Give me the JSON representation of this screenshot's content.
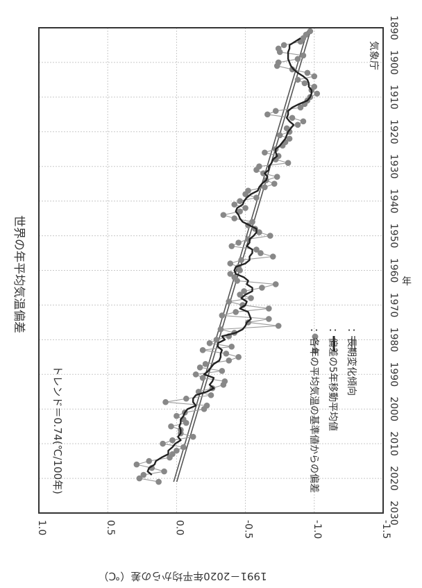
{
  "chart_data": {
    "type": "line",
    "title": "世界の年平均気温偏差",
    "xlabel": "年",
    "ylabel": "1991－2020年平均からの差（℃）",
    "source_label": "気象庁",
    "trend_label": "トレンド＝0.74(℃/100年)",
    "xlim": [
      1890,
      2030
    ],
    "ylim": [
      -1.5,
      1.0
    ],
    "x_ticks": [
      1890,
      1900,
      1910,
      1920,
      1930,
      1940,
      1950,
      1960,
      1970,
      1980,
      1990,
      2000,
      2010,
      2020,
      2030
    ],
    "y_ticks": [
      1.0,
      0.5,
      0.0,
      -0.5,
      -1.0,
      -1.5
    ],
    "y_tick_labels": [
      "1.0",
      "0.5",
      "0.0",
      "-0.5",
      "-1.0",
      "-1.5"
    ],
    "grid": true,
    "orientation": "rotated 90° clockwise (years run top to bottom of the page)",
    "legend_position": "right",
    "legend": [
      {
        "symbol": "dot-line",
        "label": "：各年の平均気温の基準値からの偏差"
      },
      {
        "symbol": "bold-line",
        "label": "：偏差の5年移動平均値"
      },
      {
        "symbol": "double-line",
        "label": "：長期変化傾向"
      }
    ],
    "colors": {
      "annual": "#888888",
      "moving_average": "#222222",
      "trend": "#555555"
    },
    "trend": {
      "x": [
        1891,
        2021
      ],
      "y": [
        -0.96,
        0.01
      ]
    },
    "series": [
      {
        "x": [
          1891,
          1892,
          1893,
          1894,
          1895,
          1896,
          1897,
          1898,
          1899,
          1900,
          1901,
          1902,
          1903,
          1904,
          1905,
          1906,
          1907,
          1908,
          1909,
          1910,
          1911,
          1912,
          1913,
          1914,
          1915,
          1916,
          1917,
          1918,
          1919,
          1920,
          1921,
          1922,
          1923,
          1924,
          1925,
          1926,
          1927,
          1928,
          1929,
          1930,
          1931,
          1932,
          1933,
          1934,
          1935,
          1936,
          1937,
          1938,
          1939,
          1940,
          1941,
          1942,
          1943,
          1944,
          1945,
          1946,
          1947,
          1948,
          1949,
          1950,
          1951,
          1952,
          1953,
          1954,
          1955,
          1956,
          1957,
          1958,
          1959,
          1960,
          1961,
          1962,
          1963,
          1964,
          1965,
          1966,
          1967,
          1968,
          1969,
          1970,
          1971,
          1972,
          1973,
          1974,
          1975,
          1976,
          1977,
          1978,
          1979,
          1980,
          1981,
          1982,
          1983,
          1984,
          1985,
          1986,
          1987,
          1988,
          1989,
          1990,
          1991,
          1992,
          1993,
          1994,
          1995,
          1996,
          1997,
          1998,
          1999,
          2000,
          2001,
          2002,
          2003,
          2004,
          2005,
          2006,
          2007,
          2008,
          2009,
          2010,
          2011,
          2012,
          2013,
          2014,
          2015,
          2016,
          2017,
          2018,
          2019,
          2020,
          2021
        ],
        "y": [
          -0.97,
          -0.94,
          -0.92,
          -0.9,
          -0.78,
          -0.74,
          -0.75,
          -0.92,
          -0.88,
          -0.74,
          -0.73,
          -0.84,
          -0.95,
          -1.0,
          -0.88,
          -0.93,
          -1.0,
          -0.98,
          -1.02,
          -0.97,
          -0.95,
          -0.93,
          -0.9,
          -0.72,
          -0.66,
          -0.84,
          -0.92,
          -0.88,
          -0.8,
          -0.82,
          -0.75,
          -0.82,
          -0.79,
          -0.77,
          -0.72,
          -0.64,
          -0.74,
          -0.72,
          -0.81,
          -0.6,
          -0.58,
          -0.63,
          -0.73,
          -0.65,
          -0.71,
          -0.64,
          -0.52,
          -0.5,
          -0.58,
          -0.46,
          -0.42,
          -0.5,
          -0.46,
          -0.34,
          -0.42,
          -0.55,
          -0.52,
          -0.57,
          -0.6,
          -0.68,
          -0.52,
          -0.45,
          -0.4,
          -0.58,
          -0.61,
          -0.7,
          -0.47,
          -0.39,
          -0.45,
          -0.46,
          -0.39,
          -0.42,
          -0.44,
          -0.72,
          -0.62,
          -0.49,
          -0.46,
          -0.54,
          -0.38,
          -0.48,
          -0.67,
          -0.43,
          -0.33,
          -0.67,
          -0.52,
          -0.74,
          -0.32,
          -0.42,
          -0.38,
          -0.29,
          -0.24,
          -0.4,
          -0.19,
          -0.36,
          -0.45,
          -0.38,
          -0.21,
          -0.17,
          -0.33,
          -0.14,
          -0.19,
          -0.35,
          -0.34,
          -0.26,
          -0.16,
          -0.25,
          -0.07,
          0.08,
          -0.22,
          -0.2,
          -0.06,
          0.0,
          -0.05,
          -0.07,
          0.04,
          -0.03,
          -0.03,
          -0.12,
          0.03,
          0.1,
          -0.05,
          0.0,
          0.03,
          0.05,
          0.2,
          0.29,
          0.18,
          0.09,
          0.24,
          0.27,
          0.13
        ],
        "style": "dots connected by thin lines"
      },
      {
        "x": [
          1893,
          1894,
          1895,
          1896,
          1897,
          1898,
          1899,
          1900,
          1901,
          1902,
          1903,
          1904,
          1905,
          1906,
          1907,
          1908,
          1909,
          1910,
          1911,
          1912,
          1913,
          1914,
          1915,
          1916,
          1917,
          1918,
          1919,
          1920,
          1921,
          1922,
          1923,
          1924,
          1925,
          1926,
          1927,
          1928,
          1929,
          1930,
          1931,
          1932,
          1933,
          1934,
          1935,
          1936,
          1937,
          1938,
          1939,
          1940,
          1941,
          1942,
          1943,
          1944,
          1945,
          1946,
          1947,
          1948,
          1949,
          1950,
          1951,
          1952,
          1953,
          1954,
          1955,
          1956,
          1957,
          1958,
          1959,
          1960,
          1961,
          1962,
          1963,
          1964,
          1965,
          1966,
          1967,
          1968,
          1969,
          1970,
          1971,
          1972,
          1973,
          1974,
          1975,
          1976,
          1977,
          1978,
          1979,
          1980,
          1981,
          1982,
          1983,
          1984,
          1985,
          1986,
          1987,
          1988,
          1989,
          1990,
          1991,
          1992,
          1993,
          1994,
          1995,
          1996,
          1997,
          1998,
          1999,
          2000,
          2001,
          2002,
          2003,
          2004,
          2005,
          2006,
          2007,
          2008,
          2009,
          2010,
          2011,
          2012,
          2013,
          2014,
          2015,
          2016,
          2017,
          2018,
          2019
        ],
        "y": [
          -0.9,
          -0.86,
          -0.82,
          -0.82,
          -0.81,
          -0.81,
          -0.81,
          -0.82,
          -0.83,
          -0.85,
          -0.88,
          -0.92,
          -0.95,
          -0.96,
          -0.96,
          -0.98,
          -0.98,
          -0.97,
          -0.95,
          -0.89,
          -0.84,
          -0.81,
          -0.81,
          -0.8,
          -0.82,
          -0.85,
          -0.83,
          -0.81,
          -0.8,
          -0.79,
          -0.77,
          -0.75,
          -0.72,
          -0.72,
          -0.73,
          -0.7,
          -0.69,
          -0.67,
          -0.67,
          -0.64,
          -0.66,
          -0.65,
          -0.62,
          -0.6,
          -0.59,
          -0.54,
          -0.51,
          -0.49,
          -0.48,
          -0.44,
          -0.43,
          -0.45,
          -0.46,
          -0.48,
          -0.53,
          -0.58,
          -0.58,
          -0.56,
          -0.53,
          -0.53,
          -0.51,
          -0.55,
          -0.55,
          -0.53,
          -0.53,
          -0.5,
          -0.43,
          -0.42,
          -0.43,
          -0.49,
          -0.52,
          -0.51,
          -0.55,
          -0.55,
          -0.5,
          -0.47,
          -0.51,
          -0.5,
          -0.46,
          -0.52,
          -0.53,
          -0.54,
          -0.51,
          -0.5,
          -0.48,
          -0.43,
          -0.33,
          -0.35,
          -0.3,
          -0.3,
          -0.33,
          -0.32,
          -0.32,
          -0.31,
          -0.27,
          -0.25,
          -0.23,
          -0.2,
          -0.27,
          -0.26,
          -0.24,
          -0.27,
          -0.22,
          -0.14,
          -0.12,
          -0.12,
          -0.14,
          -0.08,
          -0.06,
          -0.05,
          -0.03,
          -0.03,
          -0.02,
          -0.03,
          -0.03,
          -0.01,
          -0.03,
          0.01,
          0.03,
          0.06,
          0.06,
          0.11,
          0.15,
          0.16,
          0.2,
          0.21,
          0.18
        ],
        "style": "bold black line"
      }
    ]
  }
}
